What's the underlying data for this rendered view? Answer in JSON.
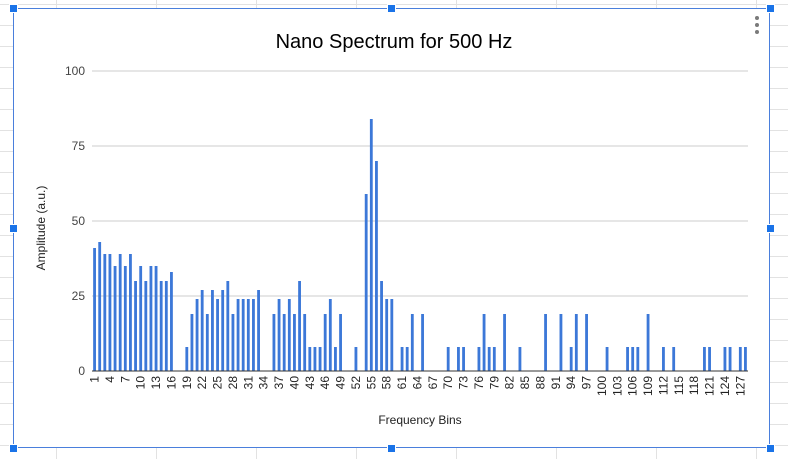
{
  "chart_data": {
    "type": "bar",
    "title": "Nano Spectrum for 500 Hz",
    "xlabel": "Frequency Bins",
    "ylabel": "Amplitude (a.u.)",
    "ylim": [
      0,
      100
    ],
    "yticks": [
      0,
      25,
      50,
      75,
      100
    ],
    "grid": true,
    "legend": "none",
    "bar_color": "#3c78d8",
    "x": [
      1,
      2,
      3,
      4,
      5,
      6,
      7,
      8,
      9,
      10,
      11,
      12,
      13,
      14,
      15,
      16,
      17,
      18,
      19,
      20,
      21,
      22,
      23,
      24,
      25,
      26,
      27,
      28,
      29,
      30,
      31,
      32,
      33,
      34,
      35,
      36,
      37,
      38,
      39,
      40,
      41,
      42,
      43,
      44,
      45,
      46,
      47,
      48,
      49,
      50,
      51,
      52,
      53,
      54,
      55,
      56,
      57,
      58,
      59,
      60,
      61,
      62,
      63,
      64,
      65,
      66,
      67,
      68,
      69,
      70,
      71,
      72,
      73,
      74,
      75,
      76,
      77,
      78,
      79,
      80,
      81,
      82,
      83,
      84,
      85,
      86,
      87,
      88,
      89,
      90,
      91,
      92,
      93,
      94,
      95,
      96,
      97,
      98,
      99,
      100,
      101,
      102,
      103,
      104,
      105,
      106,
      107,
      108,
      109,
      110,
      111,
      112,
      113,
      114,
      115,
      116,
      117,
      118,
      119,
      120,
      121,
      122,
      123,
      124,
      125,
      126,
      127,
      128
    ],
    "values": [
      41,
      43,
      39,
      39,
      35,
      39,
      35,
      39,
      30,
      35,
      30,
      35,
      35,
      30,
      30,
      33,
      0,
      0,
      8,
      19,
      24,
      27,
      19,
      27,
      24,
      27,
      30,
      19,
      24,
      24,
      24,
      24,
      27,
      0,
      0,
      19,
      24,
      19,
      24,
      19,
      30,
      19,
      8,
      8,
      8,
      19,
      24,
      8,
      19,
      0,
      0,
      8,
      0,
      59,
      84,
      70,
      30,
      24,
      24,
      0,
      8,
      8,
      19,
      0,
      19,
      0,
      0,
      0,
      0,
      8,
      0,
      8,
      8,
      0,
      0,
      8,
      19,
      8,
      8,
      0,
      19,
      0,
      0,
      8,
      0,
      0,
      0,
      0,
      19,
      0,
      0,
      19,
      0,
      8,
      19,
      0,
      19,
      0,
      0,
      0,
      8,
      0,
      0,
      0,
      8,
      8,
      8,
      0,
      19,
      0,
      0,
      8,
      0,
      8,
      0,
      0,
      0,
      0,
      0,
      8,
      8,
      0,
      0,
      8,
      8,
      0,
      8,
      8
    ],
    "tick_labels": [
      "1",
      "4",
      "7",
      "10",
      "13",
      "16",
      "19",
      "22",
      "25",
      "28",
      "31",
      "34",
      "37",
      "40",
      "43",
      "46",
      "49",
      "52",
      "55",
      "58",
      "61",
      "64",
      "67",
      "70",
      "73",
      "76",
      "79",
      "82",
      "85",
      "88",
      "91",
      "94",
      "97",
      "100",
      "103",
      "106",
      "109",
      "112",
      "115",
      "118",
      "121",
      "124",
      "127"
    ]
  }
}
